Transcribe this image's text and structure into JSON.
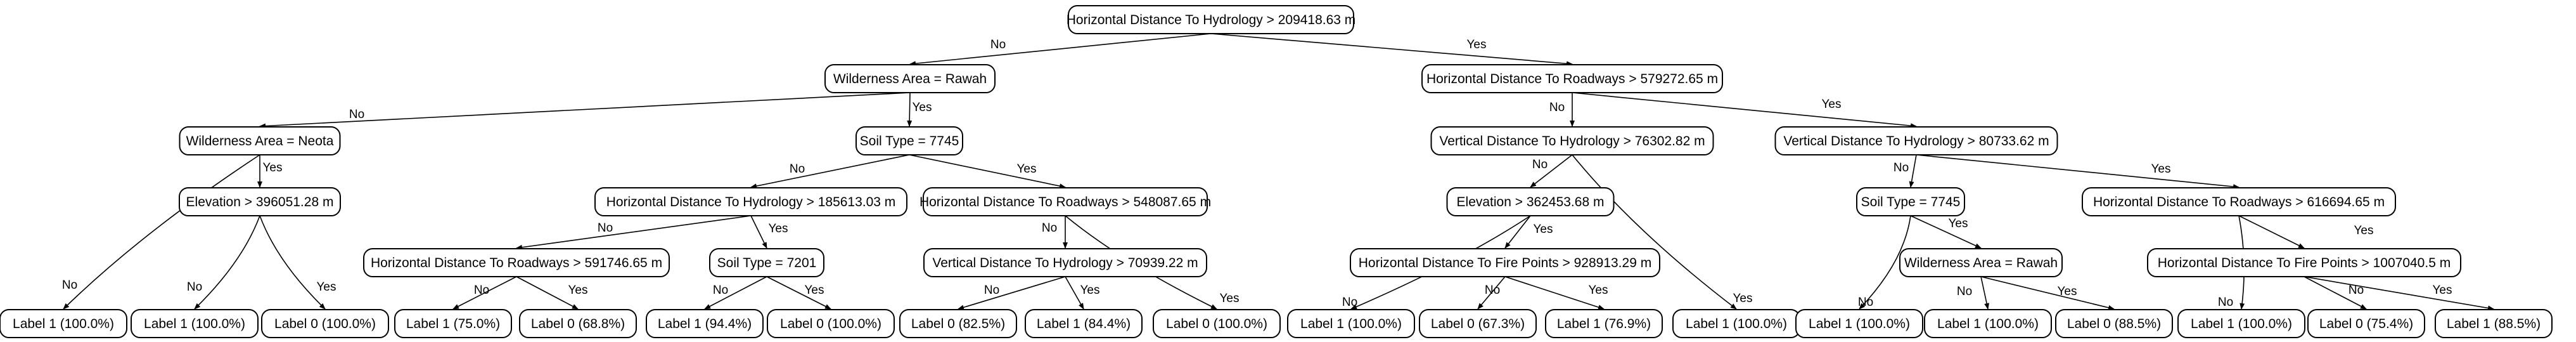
{
  "tree": {
    "nodes": [
      {
        "id": "n0",
        "label": "Horizontal Distance To Hydrology > 209418.63 m"
      },
      {
        "id": "n1",
        "label": "Wilderness Area = Rawah"
      },
      {
        "id": "n2",
        "label": "Horizontal Distance To Roadways > 579272.65 m"
      },
      {
        "id": "n3",
        "label": "Wilderness Area = Neota"
      },
      {
        "id": "n4",
        "label": "Soil Type = 7745"
      },
      {
        "id": "n5",
        "label": "Vertical Distance To Hydrology > 76302.82 m"
      },
      {
        "id": "n6",
        "label": "Vertical Distance To Hydrology > 80733.62 m"
      },
      {
        "id": "n7",
        "label": "Elevation > 396051.28 m"
      },
      {
        "id": "n8",
        "label": "Horizontal Distance To Hydrology > 185613.03 m"
      },
      {
        "id": "n9",
        "label": "Horizontal Distance To Roadways > 548087.65 m"
      },
      {
        "id": "n10",
        "label": "Elevation > 362453.68 m"
      },
      {
        "id": "n11",
        "label": "Soil Type = 7745"
      },
      {
        "id": "n12",
        "label": "Horizontal Distance To Roadways > 616694.65 m"
      },
      {
        "id": "n13",
        "label": "Horizontal Distance To Roadways > 591746.65 m"
      },
      {
        "id": "n14",
        "label": "Soil Type = 7201"
      },
      {
        "id": "n15",
        "label": "Vertical Distance To Hydrology > 70939.22 m"
      },
      {
        "id": "n16",
        "label": "Horizontal Distance To Fire Points > 928913.29 m"
      },
      {
        "id": "n17",
        "label": "Wilderness Area = Rawah"
      },
      {
        "id": "n18",
        "label": "Horizontal Distance To Fire Points > 1007040.5 m"
      },
      {
        "id": "l0",
        "label": "Label 1 (100.0%)"
      },
      {
        "id": "l1",
        "label": "Label 1 (100.0%)"
      },
      {
        "id": "l2",
        "label": "Label 0 (100.0%)"
      },
      {
        "id": "l3",
        "label": "Label 1 (75.0%)"
      },
      {
        "id": "l4",
        "label": "Label 0 (68.8%)"
      },
      {
        "id": "l5",
        "label": "Label 1 (94.4%)"
      },
      {
        "id": "l6",
        "label": "Label 0 (100.0%)"
      },
      {
        "id": "l7",
        "label": "Label 0 (82.5%)"
      },
      {
        "id": "l8",
        "label": "Label 1 (84.4%)"
      },
      {
        "id": "l9",
        "label": "Label 0 (100.0%)"
      },
      {
        "id": "l10",
        "label": "Label 1 (100.0%)"
      },
      {
        "id": "l11",
        "label": "Label 0 (67.3%)"
      },
      {
        "id": "l12",
        "label": "Label 1 (76.9%)"
      },
      {
        "id": "l13",
        "label": "Label 1 (100.0%)"
      },
      {
        "id": "l14",
        "label": "Label 1 (100.0%)"
      },
      {
        "id": "l15",
        "label": "Label 1 (100.0%)"
      },
      {
        "id": "l16",
        "label": "Label 0 (88.5%)"
      },
      {
        "id": "l17",
        "label": "Label 1 (100.0%)"
      },
      {
        "id": "l18",
        "label": "Label 0 (75.4%)"
      },
      {
        "id": "l19",
        "label": "Label 1 (88.5%)"
      }
    ],
    "edges": [
      {
        "from": "n0",
        "to": "n1",
        "label": "No"
      },
      {
        "from": "n0",
        "to": "n2",
        "label": "Yes"
      },
      {
        "from": "n1",
        "to": "n3",
        "label": "No"
      },
      {
        "from": "n1",
        "to": "n4",
        "label": "Yes"
      },
      {
        "from": "n2",
        "to": "n5",
        "label": "No"
      },
      {
        "from": "n2",
        "to": "n6",
        "label": "Yes"
      },
      {
        "from": "n3",
        "to": "l0",
        "label": "No"
      },
      {
        "from": "n3",
        "to": "n7",
        "label": "Yes"
      },
      {
        "from": "n7",
        "to": "l1",
        "label": "No"
      },
      {
        "from": "n7",
        "to": "l2",
        "label": "Yes"
      },
      {
        "from": "n4",
        "to": "n8",
        "label": "No"
      },
      {
        "from": "n4",
        "to": "n9",
        "label": "Yes"
      },
      {
        "from": "n8",
        "to": "n13",
        "label": "No"
      },
      {
        "from": "n8",
        "to": "n14",
        "label": "Yes"
      },
      {
        "from": "n13",
        "to": "l3",
        "label": "No"
      },
      {
        "from": "n13",
        "to": "l4",
        "label": "Yes"
      },
      {
        "from": "n14",
        "to": "l5",
        "label": "No"
      },
      {
        "from": "n14",
        "to": "l6",
        "label": "Yes"
      },
      {
        "from": "n9",
        "to": "n15",
        "label": "No"
      },
      {
        "from": "n9",
        "to": "l9",
        "label": "Yes"
      },
      {
        "from": "n15",
        "to": "l7",
        "label": "No"
      },
      {
        "from": "n15",
        "to": "l8",
        "label": "Yes"
      },
      {
        "from": "n5",
        "to": "n10",
        "label": "No"
      },
      {
        "from": "n5",
        "to": "l13",
        "label": "Yes"
      },
      {
        "from": "n10",
        "to": "l10",
        "label": "No"
      },
      {
        "from": "n10",
        "to": "n16",
        "label": "Yes"
      },
      {
        "from": "n16",
        "to": "l11",
        "label": "No"
      },
      {
        "from": "n16",
        "to": "l12",
        "label": "Yes"
      },
      {
        "from": "n6",
        "to": "n11",
        "label": "No"
      },
      {
        "from": "n6",
        "to": "n12",
        "label": "Yes"
      },
      {
        "from": "n11",
        "to": "l14",
        "label": "No"
      },
      {
        "from": "n11",
        "to": "n17",
        "label": "Yes"
      },
      {
        "from": "n17",
        "to": "l15",
        "label": "No"
      },
      {
        "from": "n17",
        "to": "l16",
        "label": "Yes"
      },
      {
        "from": "n12",
        "to": "l17",
        "label": "No"
      },
      {
        "from": "n12",
        "to": "n18",
        "label": "Yes"
      },
      {
        "from": "n18",
        "to": "l18",
        "label": "No"
      },
      {
        "from": "n18",
        "to": "l19",
        "label": "Yes"
      }
    ]
  }
}
